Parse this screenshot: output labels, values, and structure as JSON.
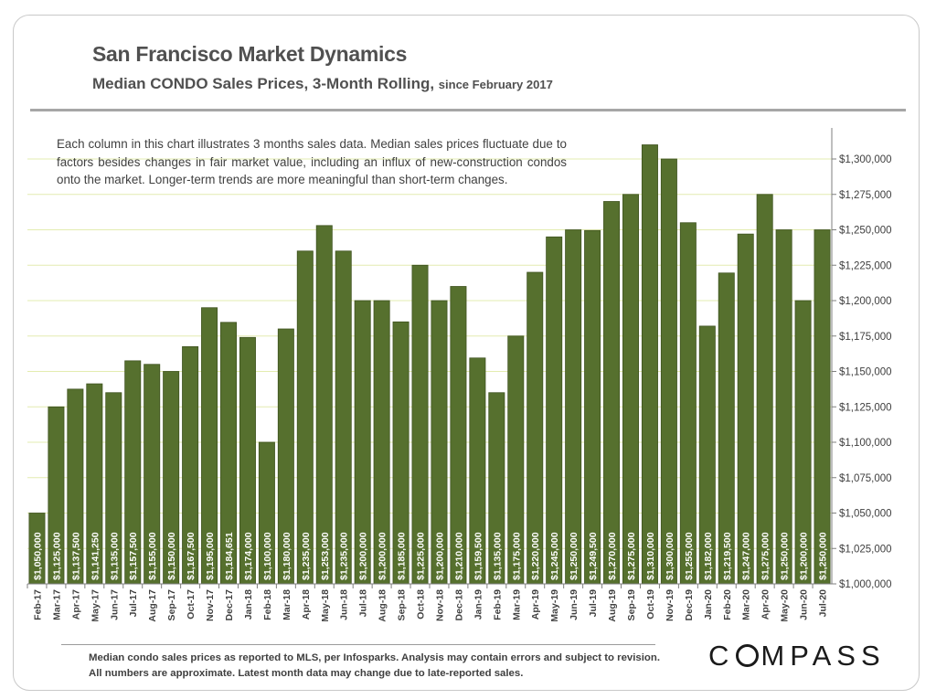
{
  "header": {
    "title": "San Francisco Market Dynamics",
    "subtitle": "Median CONDO Sales Prices, 3-Month Rolling,",
    "subtitle_small": "since February 2017"
  },
  "note": "Each column in this chart illustrates 3 months sales data. Median sales prices fluctuate due to factors besides changes in fair market value, including an influx of new-construction condos onto the market. Longer-term trends are more meaningful than short-term changes.",
  "footnote": "Median condo sales prices as reported to MLS, per Infosparks.  Analysis may contain errors and subject to revision. All numbers are approximate. Latest month data may change due to late-reported sales.",
  "logo": {
    "text_left": "C",
    "text_right": "MPASS"
  },
  "colors": {
    "bar": "#56702e",
    "bar_edge": "#3f5320",
    "grid": "#e3ecb0",
    "axis": "#7f7f7f"
  },
  "chart_data": {
    "type": "bar",
    "title": "San Francisco Market Dynamics",
    "ylim": [
      1000000,
      1325000
    ],
    "y_ticks": [
      "$1,000,000",
      "$1,025,000",
      "$1,050,000",
      "$1,075,000",
      "$1,100,000",
      "$1,125,000",
      "$1,150,000",
      "$1,175,000",
      "$1,200,000",
      "$1,225,000",
      "$1,250,000",
      "$1,275,000",
      "$1,300,000"
    ],
    "y_tick_values": [
      1000000,
      1025000,
      1050000,
      1075000,
      1100000,
      1125000,
      1150000,
      1175000,
      1200000,
      1225000,
      1250000,
      1275000,
      1300000
    ],
    "categories": [
      "Feb-17",
      "Mar-17",
      "Apr-17",
      "May-17",
      "Jun-17",
      "Jul-17",
      "Aug-17",
      "Sep-17",
      "Oct-17",
      "Nov-17",
      "Dec-17",
      "Jan-18",
      "Feb-18",
      "Mar-18",
      "Apr-18",
      "May-18",
      "Jun-18",
      "Jul-18",
      "Aug-18",
      "Sep-18",
      "Oct-18",
      "Nov-18",
      "Dec-18",
      "Jan-19",
      "Feb-19",
      "Mar-19",
      "Apr-19",
      "May-19",
      "Jun-19",
      "Jul-19",
      "Aug-19",
      "Sep-19",
      "Oct-19",
      "Nov-19",
      "Dec-19",
      "Jan-20",
      "Feb-20",
      "Mar-20",
      "Apr-20",
      "May-20",
      "Jun-20",
      "Jul-20"
    ],
    "values": [
      1050000,
      1125000,
      1137500,
      1141250,
      1135000,
      1157500,
      1155000,
      1150000,
      1167500,
      1195000,
      1184651,
      1174000,
      1100000,
      1180000,
      1235000,
      1253000,
      1235000,
      1200000,
      1200000,
      1185000,
      1225000,
      1200000,
      1210000,
      1159500,
      1135000,
      1175000,
      1220000,
      1245000,
      1250000,
      1249500,
      1270000,
      1275000,
      1310000,
      1300000,
      1255000,
      1182000,
      1219500,
      1247000,
      1275000,
      1250000,
      1200000,
      1250000
    ],
    "value_labels": [
      "$1,050,000",
      "$1,125,000",
      "$1,137,500",
      "$1,141,250",
      "$1,135,000",
      "$1,157,500",
      "$1,155,000",
      "$1,150,000",
      "$1,167,500",
      "$1,195,000",
      "$1,184,651",
      "$1,174,000",
      "$1,100,000",
      "$1,180,000",
      "$1,235,000",
      "$1,253,000",
      "$1,235,000",
      "$1,200,000",
      "$1,200,000",
      "$1,185,000",
      "$1,225,000",
      "$1,200,000",
      "$1,210,000",
      "$1,159,500",
      "$1,135,000",
      "$1,175,000",
      "$1,220,000",
      "$1,245,000",
      "$1,250,000",
      "$1,249,500",
      "$1,270,000",
      "$1,275,000",
      "$1,310,000",
      "$1,300,000",
      "$1,255,000",
      "$1,182,000",
      "$1,219,500",
      "$1,247,000",
      "$1,275,000",
      "$1,250,000",
      "$1,200,000",
      "$1,250,000"
    ],
    "grid": true,
    "y_axis_side": "right"
  }
}
